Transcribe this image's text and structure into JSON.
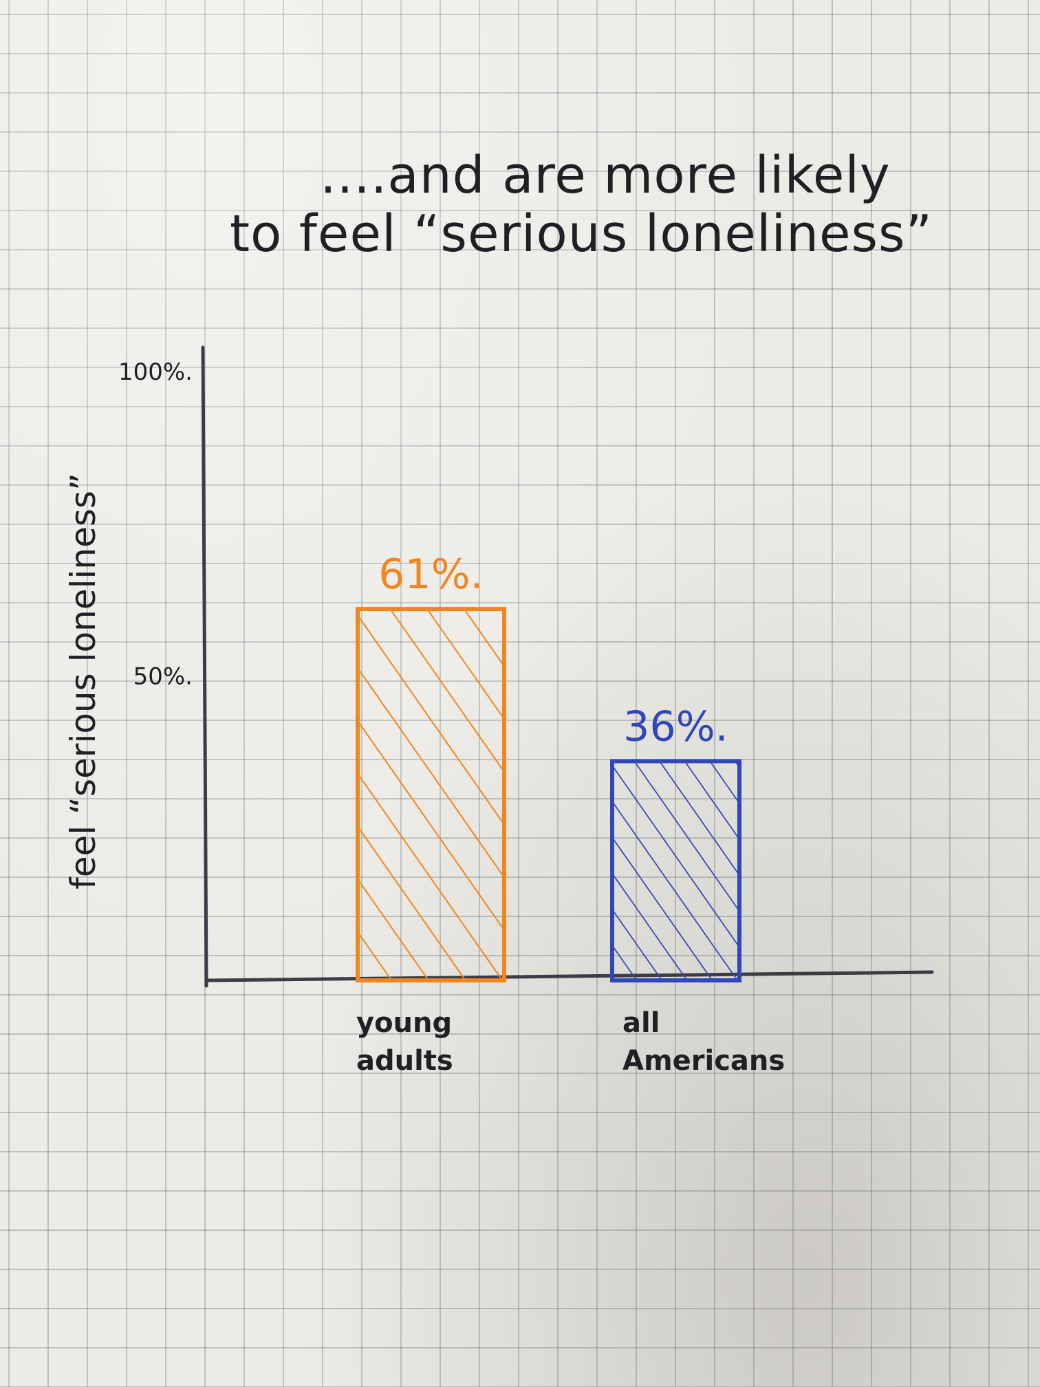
{
  "chart_data": {
    "type": "bar",
    "title_lines": [
      "....and are more likely",
      "to feel “serious loneliness”"
    ],
    "ylabel": "feel “serious loneliness”",
    "xlabel": "",
    "ylim": [
      0,
      100
    ],
    "yticks": [
      {
        "value": 50,
        "label": "50%."
      },
      {
        "value": 100,
        "label": "100%."
      }
    ],
    "categories": [
      {
        "lines": [
          "young",
          "adults"
        ]
      },
      {
        "lines": [
          "all",
          "Americans"
        ]
      }
    ],
    "values": [
      61,
      36
    ],
    "value_labels": [
      "61%.",
      "36%."
    ],
    "colors": [
      "#f0861e",
      "#2f47b8"
    ],
    "axis_color": "#3a3d47"
  }
}
